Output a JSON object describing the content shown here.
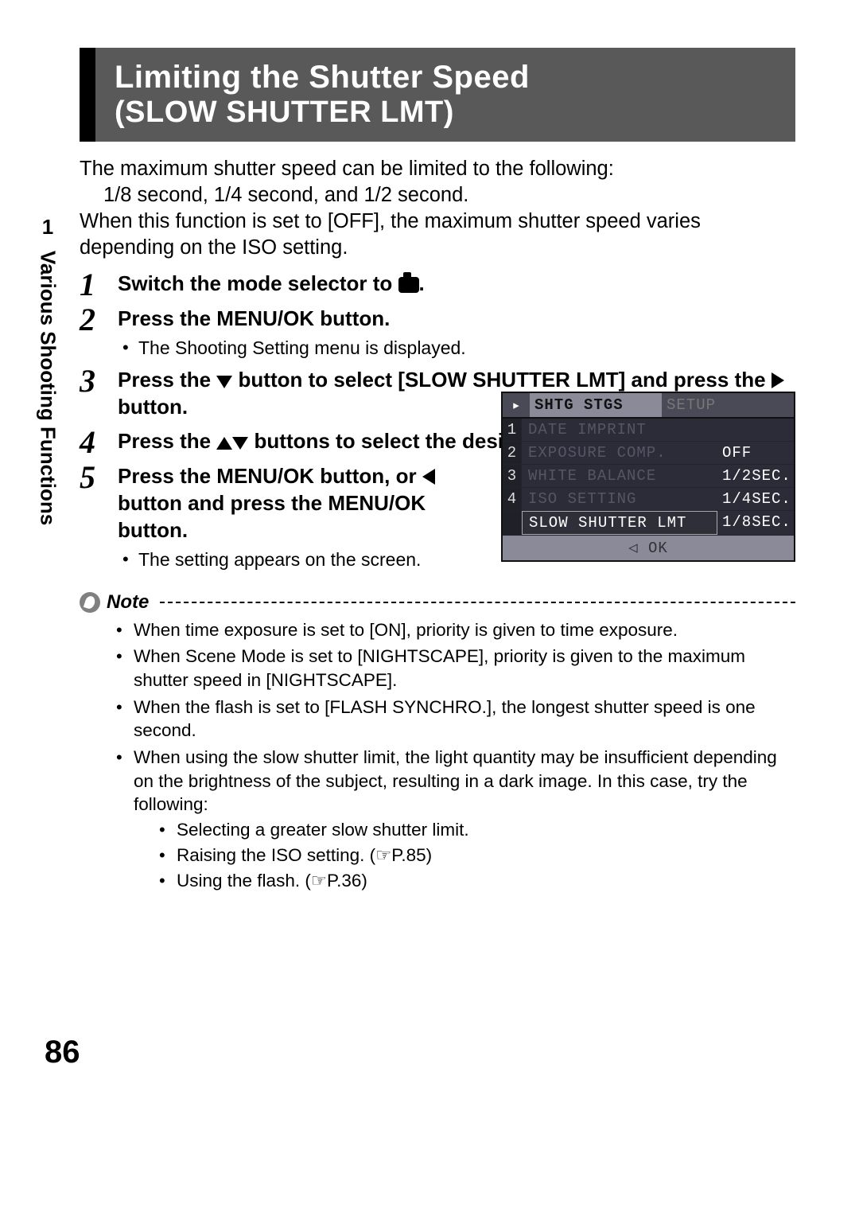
{
  "sidebar": {
    "chapter": "1",
    "title": "Various Shooting Functions"
  },
  "page_number": "86",
  "heading": {
    "line1": "Limiting the Shutter Speed",
    "line2": "(SLOW SHUTTER LMT)"
  },
  "intro": {
    "line1": "The maximum shutter speed can be limited to the following:",
    "line2": "1/8 second, 1/4 second, and 1/2 second.",
    "line3": "When this function is set to [OFF], the maximum shutter speed varies depending on the ISO setting."
  },
  "steps": [
    {
      "num": "1",
      "head_pre": "Switch the mode selector to ",
      "head_post": "."
    },
    {
      "num": "2",
      "head": "Press the MENU/OK button.",
      "sub": "The Shooting Setting menu is displayed."
    },
    {
      "num": "3",
      "head_pre": "Press the ",
      "head_mid": " button to select [SLOW SHUTTER LMT] and press the ",
      "head_post": " button."
    },
    {
      "num": "4",
      "head_pre": "Press the ",
      "head_post": " buttons to select the desired setting."
    },
    {
      "num": "5",
      "head_pre": "Press the MENU/OK button, or ",
      "head_post": " button and press the MENU/OK button.",
      "sub": "The setting appears on the screen."
    }
  ],
  "lcd": {
    "tab_active": "SHTG STGS",
    "tab_inactive": "SETUP",
    "rows": [
      {
        "n": "1",
        "label": "DATE IMPRINT",
        "value": ""
      },
      {
        "n": "2",
        "label": "EXPOSURE COMP.",
        "value": "OFF"
      },
      {
        "n": "3",
        "label": "WHITE BALANCE",
        "value": "1/2SEC."
      },
      {
        "n": "4",
        "label": "ISO SETTING",
        "value": "1/4SEC."
      },
      {
        "n": "",
        "label": "SLOW SHUTTER LMT",
        "value": "1/8SEC."
      }
    ],
    "footer": "◁ OK",
    "colors": {
      "bg": "#2c2c38",
      "tab_active_bg": "#8a8a98",
      "tab_inactive_bg": "#4a4a56",
      "text_dim": "#555566",
      "text": "#e8e8ef",
      "footer_bg": "#8a8a98"
    }
  },
  "note": {
    "title": "Note",
    "items": [
      "When time exposure is set to [ON], priority is given to time exposure.",
      "When Scene Mode is set to [NIGHTSCAPE], priority is given to the maximum shutter speed in [NIGHTSCAPE].",
      "When the flash is set to [FLASH SYNCHRO.], the longest shutter speed is one second.",
      "When using the slow shutter limit, the light quantity may be insufficient depending on the brightness of the subject, resulting in a dark image. In this case, try the following:"
    ],
    "subitems": [
      "Selecting a greater slow shutter limit.",
      "Raising the ISO setting. (☞P.85)",
      "Using the flash. (☞P.36)"
    ]
  }
}
